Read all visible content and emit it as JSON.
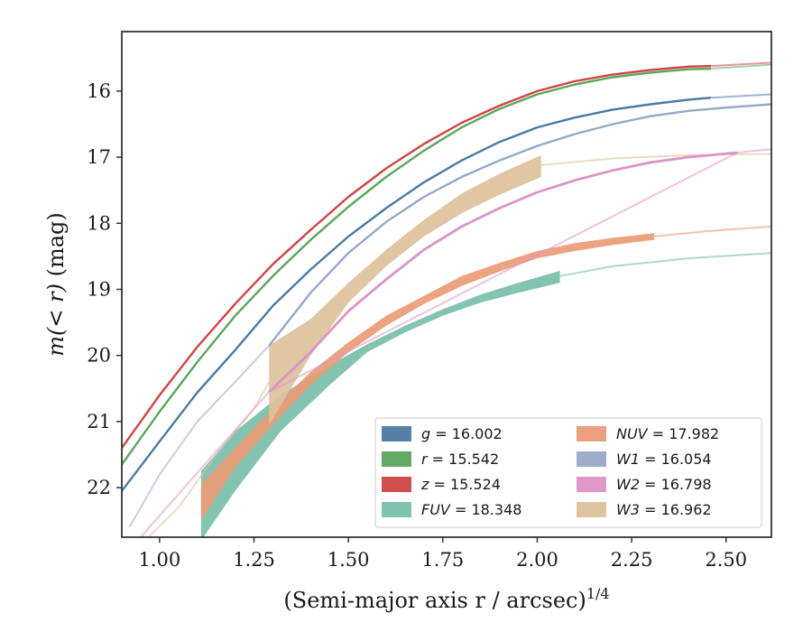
{
  "chart_data": {
    "type": "line",
    "title": "",
    "xlabel": "(Semi-major axis r / arcsec)",
    "xlabel_exponent": "1/4",
    "ylabel_prefix": "m(< r)",
    "ylabel_suffix": " (mag)",
    "xlim": [
      0.9,
      2.62
    ],
    "ylim": [
      22.75,
      15.1
    ],
    "y_inverted": true,
    "xticks": [
      1.0,
      1.25,
      1.5,
      1.75,
      2.0,
      2.25,
      2.5
    ],
    "xtick_labels": [
      "1.00",
      "1.25",
      "1.50",
      "1.75",
      "2.00",
      "2.25",
      "2.50"
    ],
    "yticks": [
      16,
      17,
      18,
      19,
      20,
      21,
      22
    ],
    "ytick_labels": [
      "16",
      "17",
      "18",
      "19",
      "20",
      "21",
      "22"
    ],
    "grid": false,
    "legend_position": "lower-right",
    "legend": [
      {
        "symbol": "g",
        "value": "16.002",
        "color": "#4c7aa4"
      },
      {
        "symbol": "r",
        "value": "15.542",
        "color": "#5ba55c"
      },
      {
        "symbol": "z",
        "value": "15.524",
        "color": "#cf4545"
      },
      {
        "symbol": "FUV",
        "value": "18.348",
        "color": "#78bfaa"
      },
      {
        "symbol": "NUV",
        "value": "17.982",
        "color": "#e99b76"
      },
      {
        "symbol": "W1",
        "value": "16.054",
        "color": "#97a8c7"
      },
      {
        "symbol": "W2",
        "value": "16.798",
        "color": "#dc94c6"
      },
      {
        "symbol": "W3",
        "value": "16.962",
        "color": "#ddc19b"
      }
    ],
    "series": [
      {
        "name": "g",
        "color": "#4c7aa4",
        "stroke_width": 2.4,
        "thin_extension": true,
        "x": [
          0.9,
          1.0,
          1.1,
          1.2,
          1.3,
          1.4,
          1.5,
          1.6,
          1.7,
          1.8,
          1.9,
          2.0,
          2.1,
          2.2,
          2.3,
          2.4,
          2.46
        ],
        "y": [
          22.05,
          21.3,
          20.56,
          19.92,
          19.25,
          18.7,
          18.2,
          17.77,
          17.38,
          17.05,
          16.77,
          16.55,
          16.4,
          16.28,
          16.2,
          16.13,
          16.1
        ],
        "ext_x": [
          2.46,
          2.62
        ],
        "ext_y": [
          16.1,
          16.05
        ]
      },
      {
        "name": "r",
        "color": "#5ba55c",
        "stroke_width": 2.4,
        "thin_extension": true,
        "x": [
          0.9,
          1.0,
          1.1,
          1.2,
          1.3,
          1.4,
          1.5,
          1.6,
          1.7,
          1.8,
          1.9,
          2.0,
          2.1,
          2.2,
          2.3,
          2.4,
          2.46
        ],
        "y": [
          21.65,
          20.85,
          20.1,
          19.4,
          18.8,
          18.25,
          17.75,
          17.3,
          16.9,
          16.55,
          16.27,
          16.05,
          15.9,
          15.79,
          15.72,
          15.67,
          15.66
        ],
        "ext_x": [
          2.46,
          2.62
        ],
        "ext_y": [
          15.66,
          15.6
        ]
      },
      {
        "name": "z",
        "color": "#cf4545",
        "stroke_width": 2.4,
        "thin_extension": true,
        "x": [
          0.9,
          1.0,
          1.1,
          1.2,
          1.3,
          1.4,
          1.5,
          1.6,
          1.7,
          1.8,
          1.9,
          2.0,
          2.1,
          2.2,
          2.3,
          2.4,
          2.46
        ],
        "y": [
          21.4,
          20.6,
          19.87,
          19.22,
          18.62,
          18.1,
          17.6,
          17.17,
          16.8,
          16.48,
          16.22,
          16.0,
          15.85,
          15.75,
          15.68,
          15.63,
          15.62
        ],
        "ext_x": [
          2.46,
          2.62
        ],
        "ext_y": [
          15.62,
          15.57
        ]
      },
      {
        "name": "W1",
        "color": "#97a8c7",
        "stroke_width": 2.4,
        "thin_extension": true,
        "x": [
          1.29,
          1.4,
          1.5,
          1.6,
          1.7,
          1.8,
          1.9,
          2.0,
          2.1,
          2.2,
          2.3,
          2.4,
          2.5,
          2.62
        ],
        "y": [
          19.85,
          19.05,
          18.45,
          17.98,
          17.6,
          17.3,
          17.05,
          16.83,
          16.65,
          16.5,
          16.38,
          16.3,
          16.25,
          16.2
        ],
        "ext_x": [
          0.92,
          1.0,
          1.1,
          1.2,
          1.29
        ],
        "ext_y": [
          22.6,
          21.8,
          21.0,
          20.4,
          19.85
        ]
      },
      {
        "name": "W2",
        "color": "#dc94c6",
        "stroke_width": 2.8,
        "thin_extension": true,
        "x": [
          1.29,
          1.4,
          1.5,
          1.6,
          1.7,
          1.8,
          1.9,
          2.0,
          2.1,
          2.2,
          2.3,
          2.4,
          2.53
        ],
        "y": [
          20.55,
          19.95,
          19.33,
          18.85,
          18.4,
          18.05,
          17.77,
          17.53,
          17.35,
          17.2,
          17.08,
          17.0,
          16.93
        ],
        "ext_x": [
          0.95,
          1.05,
          1.15,
          1.29,
          2.53,
          2.62
        ],
        "ext_y": [
          22.75,
          22.1,
          21.45,
          20.55,
          16.93,
          16.88
        ]
      }
    ],
    "bands": [
      {
        "name": "FUV",
        "color": "#78bfaa",
        "x": [
          1.11,
          1.2,
          1.32,
          1.45,
          1.55,
          1.65,
          1.75,
          1.85,
          1.95,
          2.06
        ],
        "y_upper": [
          21.75,
          21.15,
          20.6,
          20.15,
          19.83,
          19.55,
          19.3,
          19.08,
          18.9,
          18.72
        ],
        "y_lower": [
          22.8,
          22.05,
          21.15,
          20.45,
          19.95,
          19.65,
          19.4,
          19.2,
          19.05,
          18.9
        ],
        "ext_x": [
          2.06,
          2.2,
          2.4,
          2.62
        ],
        "ext_y": [
          18.8,
          18.65,
          18.53,
          18.45
        ]
      },
      {
        "name": "NUV",
        "color": "#e99b76",
        "x": [
          1.11,
          1.2,
          1.3,
          1.4,
          1.5,
          1.6,
          1.7,
          1.8,
          1.9,
          2.0,
          2.1,
          2.2,
          2.31
        ],
        "y_upper": [
          21.95,
          21.4,
          20.8,
          20.25,
          19.8,
          19.4,
          19.1,
          18.8,
          18.6,
          18.42,
          18.3,
          18.22,
          18.15
        ],
        "y_lower": [
          22.5,
          21.7,
          21.05,
          20.45,
          19.95,
          19.55,
          19.22,
          18.95,
          18.73,
          18.53,
          18.42,
          18.33,
          18.25
        ],
        "ext_x": [
          2.31,
          2.45,
          2.62
        ],
        "ext_y": [
          18.2,
          18.12,
          18.05
        ]
      },
      {
        "name": "W3",
        "color": "#ddc19b",
        "x": [
          1.29,
          1.4,
          1.5,
          1.6,
          1.7,
          1.8,
          1.9,
          2.01
        ],
        "y_upper": [
          19.85,
          19.45,
          18.9,
          18.4,
          17.95,
          17.55,
          17.25,
          16.97
        ],
        "y_lower": [
          21.05,
          20.0,
          19.2,
          18.65,
          18.2,
          17.85,
          17.57,
          17.3
        ],
        "ext_x": [
          2.01,
          2.2,
          2.4,
          2.62
        ],
        "ext_y": [
          17.12,
          17.02,
          16.97,
          16.95
        ],
        "pre_x": [
          0.97,
          1.05,
          1.15,
          1.25,
          1.29
        ],
        "pre_y": [
          22.75,
          22.3,
          21.5,
          20.8,
          20.4
        ]
      }
    ]
  }
}
